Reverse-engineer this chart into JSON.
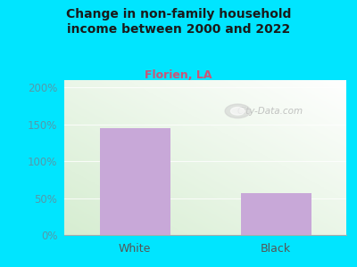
{
  "title": "Change in non-family household\nincome between 2000 and 2022",
  "subtitle": "Florien, LA",
  "categories": [
    "White",
    "Black"
  ],
  "values": [
    145,
    57
  ],
  "bar_color": "#c8a8d8",
  "title_color": "#1a1a1a",
  "subtitle_color": "#cc5577",
  "ytick_color": "#5599aa",
  "xtick_color": "#555555",
  "background_outer": "#00e5ff",
  "yticks": [
    0,
    50,
    100,
    150,
    200
  ],
  "ylim": [
    0,
    210
  ],
  "watermark": "City-Data.com"
}
